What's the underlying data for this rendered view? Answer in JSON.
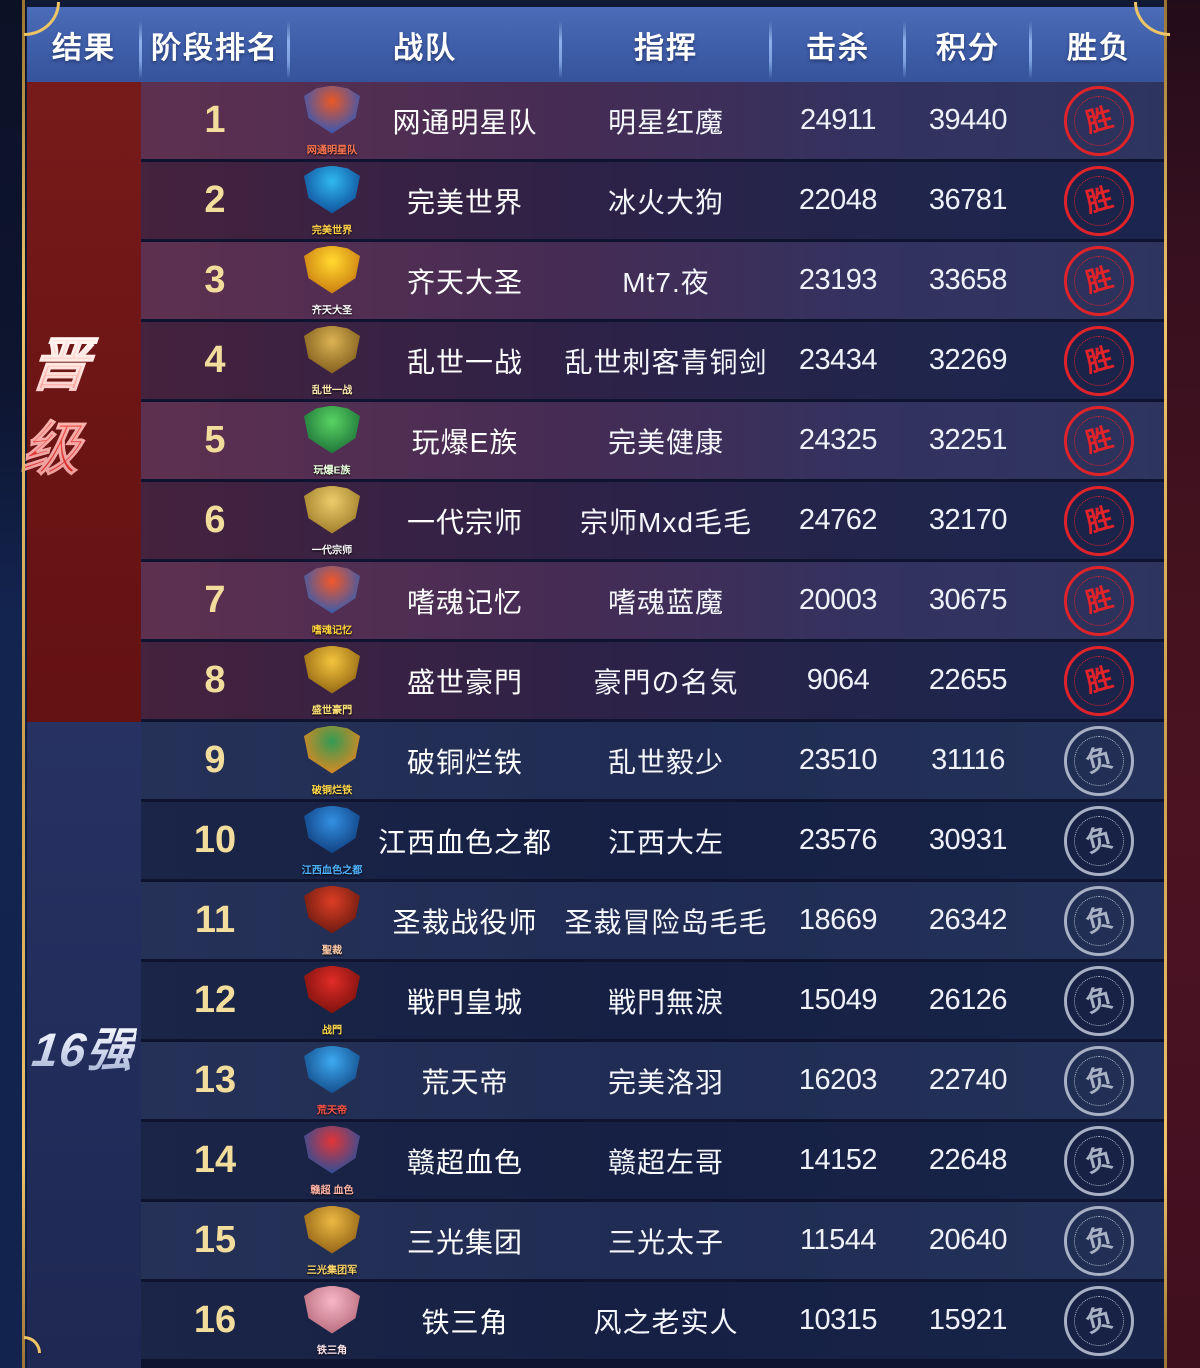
{
  "header": {
    "columns": [
      "结果",
      "阶段排名",
      "战队",
      "指挥",
      "击杀",
      "积分",
      "胜负"
    ]
  },
  "groups": [
    {
      "label": "晋级",
      "rows": "1-8",
      "bg": "#6d1515"
    },
    {
      "label": "16强",
      "rows": "9-16",
      "bg": "#232d5e"
    }
  ],
  "badges": {
    "win": {
      "label": "胜",
      "color": "#e0232a"
    },
    "loss": {
      "label": "负",
      "color": "#a8b1c4"
    }
  },
  "teams": [
    {
      "rank": "1",
      "team": "网通明星队",
      "commander": "明星红魔",
      "kills": "24911",
      "points": "39440",
      "result": "win",
      "logo": {
        "label": "网通明星队",
        "c1": "#e05a2b",
        "c2": "#2b58b8",
        "label_color": "#ff7752"
      }
    },
    {
      "rank": "2",
      "team": "完美世界",
      "commander": "冰火大狗",
      "kills": "22048",
      "points": "36781",
      "result": "win",
      "logo": {
        "label": "完美世界",
        "c1": "#39b6e8",
        "c2": "#134a8e",
        "label_color": "#ffd24a"
      }
    },
    {
      "rank": "3",
      "team": "齐天大圣",
      "commander": "Mt7.夜",
      "kills": "23193",
      "points": "33658",
      "result": "win",
      "logo": {
        "label": "齐天大圣",
        "c1": "#ffd93e",
        "c2": "#c07818",
        "label_color": "#ffffff"
      }
    },
    {
      "rank": "4",
      "team": "乱世一战",
      "commander": "乱世刺客青铜剑",
      "kills": "23434",
      "points": "32269",
      "result": "win",
      "logo": {
        "label": "乱世一战",
        "c1": "#d8b25c",
        "c2": "#7a5a20",
        "label_color": "#ffe9b0"
      }
    },
    {
      "rank": "5",
      "team": "玩爆E族",
      "commander": "完美健康",
      "kills": "24325",
      "points": "32251",
      "result": "win",
      "logo": {
        "label": "玩爆E族",
        "c1": "#62d06a",
        "c2": "#1f6d3a",
        "label_color": "#eaffdd"
      }
    },
    {
      "rank": "6",
      "team": "一代宗师",
      "commander": "宗师Mxd毛毛",
      "kills": "24762",
      "points": "32170",
      "result": "win",
      "logo": {
        "label": "一代宗师",
        "c1": "#e8cc74",
        "c2": "#9a7a2e",
        "label_color": "#ffffff"
      }
    },
    {
      "rank": "7",
      "team": "嗜魂记忆",
      "commander": "嗜魂蓝魔",
      "kills": "20003",
      "points": "30675",
      "result": "win",
      "logo": {
        "label": "嗜魂记忆",
        "c1": "#e85a30",
        "c2": "#2b5cb0",
        "label_color": "#ffd23e"
      }
    },
    {
      "rank": "8",
      "team": "盛世豪門",
      "commander": "豪門の名気",
      "kills": "9064",
      "points": "22655",
      "result": "win",
      "logo": {
        "label": "盛世豪門",
        "c1": "#f0c44a",
        "c2": "#8a6318",
        "label_color": "#ffe27a"
      }
    },
    {
      "rank": "9",
      "team": "破铜烂铁",
      "commander": "乱世毅少",
      "kills": "23510",
      "points": "31116",
      "result": "loss",
      "logo": {
        "label": "破铜烂铁",
        "c1": "#3a9858",
        "c2": "#e08828",
        "label_color": "#ffd84e"
      }
    },
    {
      "rank": "10",
      "team": "江西血色之都",
      "commander": "江西大左",
      "kills": "23576",
      "points": "30931",
      "result": "loss",
      "logo": {
        "label": "江西血色之都",
        "c1": "#3a8fd9",
        "c2": "#123a75",
        "label_color": "#4fb3ff"
      }
    },
    {
      "rank": "11",
      "team": "圣裁战役师",
      "commander": "圣裁冒险岛毛毛",
      "kills": "18669",
      "points": "26342",
      "result": "loss",
      "logo": {
        "label": "聖裁",
        "c1": "#d2402a",
        "c2": "#5e1a10",
        "label_color": "#ffccaa"
      }
    },
    {
      "rank": "12",
      "team": "戦門皇城",
      "commander": "戦門無淚",
      "kills": "15049",
      "points": "26126",
      "result": "loss",
      "logo": {
        "label": "战門",
        "c1": "#d42f2a",
        "c2": "#6e120f",
        "label_color": "#ffd84e"
      }
    },
    {
      "rank": "13",
      "team": "荒天帝",
      "commander": "完美洛羽",
      "kills": "16203",
      "points": "22740",
      "result": "loss",
      "logo": {
        "label": "荒天帝",
        "c1": "#46a8e8",
        "c2": "#14467e",
        "label_color": "#ff5448"
      }
    },
    {
      "rank": "14",
      "team": "赣超血色",
      "commander": "赣超左哥",
      "kills": "14152",
      "points": "22648",
      "result": "loss",
      "logo": {
        "label": "赣超 血色",
        "c1": "#d63838",
        "c2": "#23509a",
        "label_color": "#ffb3a6"
      }
    },
    {
      "rank": "15",
      "team": "三光集团",
      "commander": "三光太子",
      "kills": "11544",
      "points": "20640",
      "result": "loss",
      "logo": {
        "label": "三光集团军",
        "c1": "#e8b84e",
        "c2": "#8a5f1a",
        "label_color": "#ffd76a"
      }
    },
    {
      "rank": "16",
      "team": "铁三角",
      "commander": "风之老实人",
      "kills": "10315",
      "points": "15921",
      "result": "loss",
      "logo": {
        "label": "铁三角",
        "c1": "#f2b8c6",
        "c2": "#b06a7a",
        "label_color": "#ffe6ee"
      }
    }
  ]
}
